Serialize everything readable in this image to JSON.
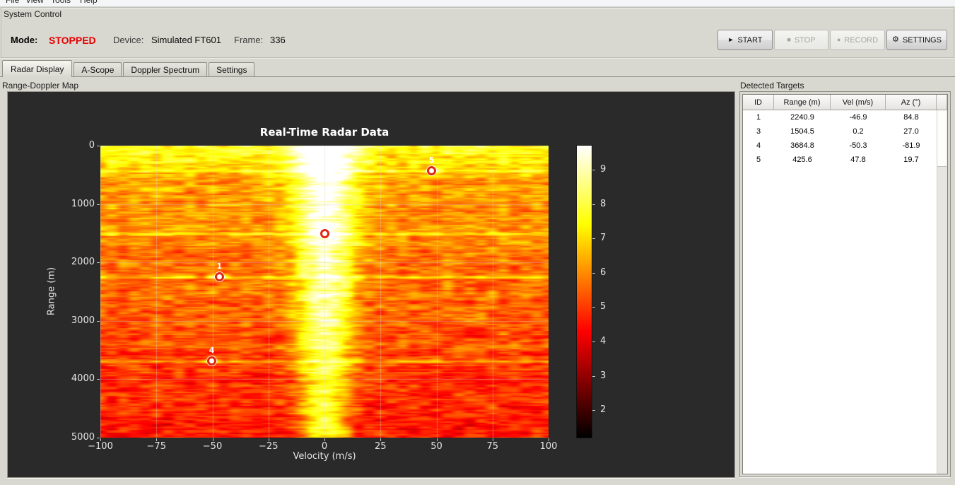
{
  "window": {
    "bg": "#d9d8d0",
    "dark_panel_bg": "#2a2a2b"
  },
  "menu_bar": {
    "items": [
      {
        "label": "File"
      },
      {
        "label": "View"
      },
      {
        "label": "Tools"
      },
      {
        "label": "Help"
      }
    ]
  },
  "system_control": {
    "title": "System Control",
    "status": {
      "mode_label": "Mode:",
      "mode_value": "STOPPED",
      "mode_color": "#e60000",
      "device_label": "Device:",
      "device_value": "Simulated FT601",
      "frame_label": "Frame:",
      "frame_value": "336"
    },
    "buttons": [
      {
        "name": "start",
        "icon": "play-icon",
        "glyph": "►",
        "label": "START",
        "enabled": true
      },
      {
        "name": "stop",
        "icon": "stop-icon",
        "glyph": "■",
        "label": "STOP",
        "enabled": false
      },
      {
        "name": "record",
        "icon": "record-icon",
        "glyph": "●",
        "label": "RECORD",
        "enabled": false
      },
      {
        "name": "settings",
        "icon": "gear-icon",
        "glyph": "⚙",
        "label": "SETTINGS",
        "enabled": true
      }
    ]
  },
  "tabs": [
    {
      "label": "Radar Display",
      "active": true
    },
    {
      "label": "A-Scope",
      "active": false
    },
    {
      "label": "Doppler Spectrum",
      "active": false
    },
    {
      "label": "Settings",
      "active": false
    }
  ],
  "radar_panel": {
    "title": "Range-Doppler Map"
  },
  "targets_panel": {
    "title": "Detected Targets",
    "headers": [
      "ID",
      "Range (m)",
      "Vel (m/s)",
      "Az (°)"
    ],
    "rows": [
      [
        "1",
        "2240.9",
        "-46.9",
        "84.8"
      ],
      [
        "3",
        "1504.5",
        "0.2",
        "27.0"
      ],
      [
        "4",
        "3684.8",
        "-50.3",
        "-81.9"
      ],
      [
        "5",
        "425.6",
        "47.8",
        "19.7"
      ]
    ]
  },
  "chart_data": {
    "type": "heatmap",
    "title": "Real-Time Radar Data",
    "xlabel": "Velocity (m/s)",
    "ylabel": "Range (m)",
    "xlim": [
      -100,
      100
    ],
    "ylim": [
      0,
      5000
    ],
    "y_inverted": true,
    "xticks": [
      -100,
      -75,
      -50,
      -25,
      0,
      25,
      50,
      75,
      100
    ],
    "yticks": [
      0,
      1000,
      2000,
      3000,
      4000,
      5000
    ],
    "grid": true,
    "grid_color": "rgba(215,215,215,0.4)",
    "colormap": "hot",
    "colorbar": {
      "vmin": 1.2,
      "vmax": 9.7,
      "ticks": [
        2,
        3,
        4,
        5,
        6,
        7,
        8,
        9
      ]
    },
    "figure_bg": "#2a2a2b",
    "text_color": "#e4e4e4",
    "title_color": "#ffffff",
    "clutter_band": {
      "center_velocity": 0,
      "sigma_velocity": 9,
      "peak_level": 9.5
    },
    "noise_floor": {
      "near_range_level": 6.5,
      "far_range_level": 4.6
    },
    "targets": [
      {
        "id": "1",
        "velocity": -46.9,
        "range": 2240.9
      },
      {
        "id": "3",
        "velocity": 0.2,
        "range": 1504.5
      },
      {
        "id": "4",
        "velocity": -50.3,
        "range": 3684.8
      },
      {
        "id": "5",
        "velocity": 47.8,
        "range": 425.6
      }
    ],
    "marker": {
      "shape": "circle",
      "face_color": "#ffffff",
      "edge_color": "#e02713",
      "label_color": "#ffffff"
    }
  }
}
